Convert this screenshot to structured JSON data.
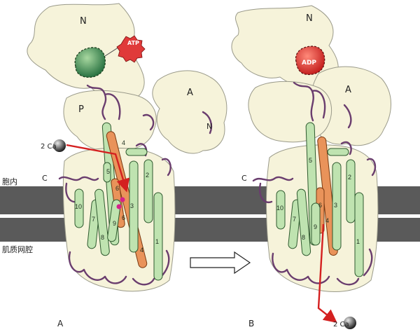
{
  "labels": {
    "domain_N": "N",
    "domain_A": "A",
    "domain_P": "P",
    "n_terminus": "N",
    "c_terminus": "C",
    "atp": "ATP",
    "adp": "ADP",
    "calcium_left": "2 Ca",
    "calcium_right": "2 Ca",
    "cytosol": "胞内",
    "lumen": "肌质网腔",
    "panel_a": "A",
    "panel_b": "B"
  },
  "helices": {
    "h1": "1",
    "h2": "2",
    "h3": "3",
    "h4": "4",
    "h4b": "4",
    "h5": "5",
    "h6": "6",
    "h6b": "6",
    "h7": "7",
    "h8": "8",
    "h9": "9",
    "h10": "10"
  },
  "colors": {
    "domain_fill": "#f6f3da",
    "helix_green": "#bfe3b0",
    "helix_orange": "#e9935a",
    "loop_purple": "#6a3d6e",
    "membrane": "#5a5a5a",
    "atp_red": "#e03a3a",
    "ca_arrow": "#d42020"
  }
}
